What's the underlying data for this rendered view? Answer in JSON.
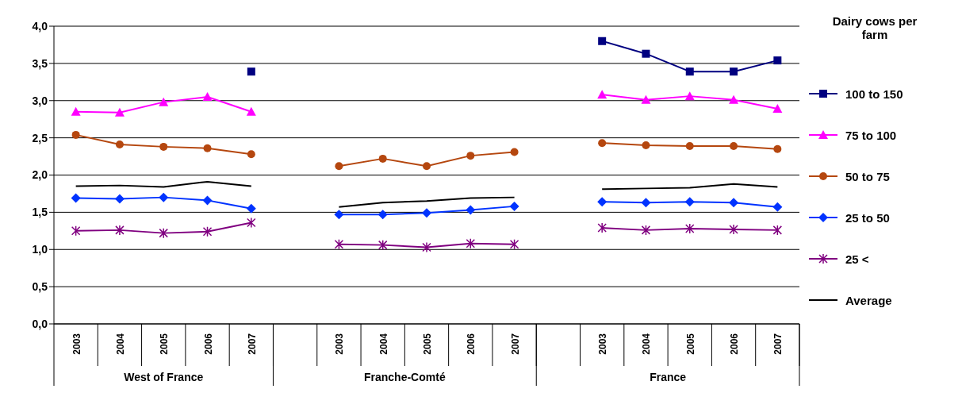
{
  "chart_data": {
    "type": "line",
    "categories": [
      "2003",
      "2004",
      "2005",
      "2006",
      "2007",
      null,
      "2003",
      "2004",
      "2005",
      "2006",
      "2007",
      null,
      "2003",
      "2004",
      "2005",
      "2006",
      "2007"
    ],
    "legend_title": "Dairy cows per farm",
    "legend": "right",
    "grid": "y",
    "ylim": [
      0,
      4
    ],
    "yticks": [
      {
        "value": 0,
        "label": "0,0"
      },
      {
        "value": 0.5,
        "label": "0,5"
      },
      {
        "value": 1,
        "label": "1,0"
      },
      {
        "value": 1.5,
        "label": "1,5"
      },
      {
        "value": 2,
        "label": "2,0"
      },
      {
        "value": 2.5,
        "label": "2,5"
      },
      {
        "value": 3,
        "label": "3,0"
      },
      {
        "value": 3.5,
        "label": "3,5"
      },
      {
        "value": 4,
        "label": "4,0"
      }
    ],
    "annotations": [
      "West of France",
      "Franche-Comté",
      "France"
    ],
    "series": [
      {
        "name": "100 to 150",
        "color": "#000080",
        "marker": "square",
        "values": [
          null,
          null,
          null,
          null,
          3.39,
          null,
          null,
          null,
          null,
          null,
          null,
          null,
          3.8,
          3.63,
          3.39,
          3.39,
          3.54
        ]
      },
      {
        "name": "75 to 100",
        "color": "#ff00ff",
        "marker": "triangle",
        "values": [
          2.85,
          2.84,
          2.98,
          3.05,
          2.85,
          null,
          null,
          null,
          null,
          null,
          null,
          null,
          3.08,
          3.01,
          3.06,
          3.01,
          2.89
        ]
      },
      {
        "name": "50 to 75",
        "color": "#b5470f",
        "marker": "circle",
        "values": [
          2.54,
          2.41,
          2.38,
          2.36,
          2.28,
          null,
          2.12,
          2.22,
          2.12,
          2.26,
          2.31,
          null,
          2.43,
          2.4,
          2.39,
          2.39,
          2.35
        ]
      },
      {
        "name": "25 to 50",
        "color": "#0033ff",
        "marker": "diamond",
        "values": [
          1.69,
          1.68,
          1.7,
          1.66,
          1.55,
          null,
          1.47,
          1.47,
          1.49,
          1.53,
          1.58,
          null,
          1.64,
          1.63,
          1.64,
          1.63,
          1.57
        ]
      },
      {
        "name": "25 <",
        "color": "#800080",
        "marker": "cross",
        "values": [
          1.25,
          1.26,
          1.22,
          1.24,
          1.36,
          null,
          1.07,
          1.06,
          1.03,
          1.08,
          1.07,
          null,
          1.29,
          1.26,
          1.28,
          1.27,
          1.26
        ]
      },
      {
        "name": "Average",
        "color": "#000000",
        "marker": "none",
        "values": [
          1.85,
          1.86,
          1.84,
          1.91,
          1.85,
          null,
          1.57,
          1.63,
          1.65,
          1.69,
          1.7,
          null,
          1.81,
          1.82,
          1.83,
          1.88,
          1.84
        ]
      }
    ]
  }
}
